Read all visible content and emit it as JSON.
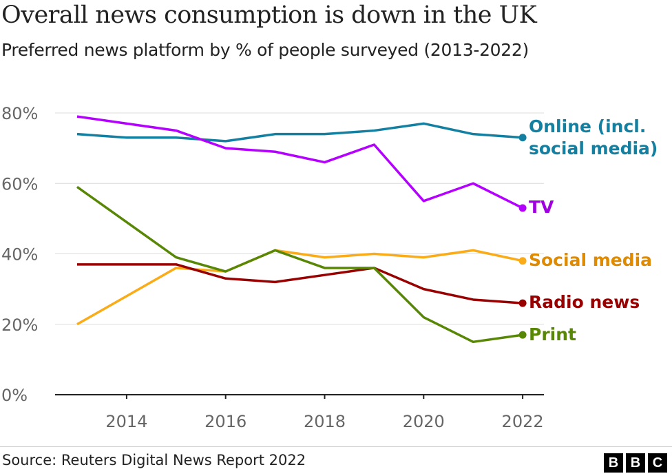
{
  "title": "Overall news consumption is down in the UK",
  "subtitle": "Preferred news platform by % of people surveyed (2013-2022)",
  "source": "Source: Reuters Digital News Report 2022",
  "logo": [
    "B",
    "B",
    "C"
  ],
  "chart_data": {
    "type": "line",
    "x": [
      2013,
      2014,
      2015,
      2016,
      2017,
      2018,
      2019,
      2020,
      2021,
      2022
    ],
    "xticks": [
      2014,
      2016,
      2018,
      2020,
      2022
    ],
    "xtick_labels": [
      "2014",
      "2016",
      "2018",
      "2020",
      "2022"
    ],
    "yticks": [
      0,
      20,
      40,
      60,
      80
    ],
    "ytick_labels": [
      "0%",
      "20%",
      "40%",
      "60%",
      "80%"
    ],
    "ylim": [
      0,
      80
    ],
    "grid": "horizontal",
    "legend": "direct labels at line ends",
    "series": [
      {
        "name": "Online (incl. social media)",
        "label_lines": [
          "Online (incl.",
          "social media)"
        ],
        "color": "#1380A1",
        "label_color": "#1380A1",
        "values": [
          74,
          73,
          73,
          72,
          74,
          74,
          75,
          77,
          74,
          73
        ]
      },
      {
        "name": "TV",
        "label_lines": [
          "TV"
        ],
        "color": "#B300FF",
        "label_color": "#A000E0",
        "values": [
          79,
          77,
          75,
          70,
          69,
          66,
          71,
          55,
          60,
          53
        ]
      },
      {
        "name": "Social media",
        "label_lines": [
          "Social media"
        ],
        "color": "#FAAB18",
        "label_color": "#E08A00",
        "values": [
          20,
          28,
          36,
          35,
          41,
          39,
          40,
          39,
          41,
          38
        ]
      },
      {
        "name": "Radio news",
        "label_lines": [
          "Radio news"
        ],
        "color": "#990000",
        "label_color": "#990000",
        "values": [
          37,
          37,
          37,
          33,
          32,
          34,
          36,
          30,
          27,
          26
        ]
      },
      {
        "name": "Print",
        "label_lines": [
          "Print"
        ],
        "color": "#588705",
        "label_color": "#588705",
        "values": [
          59,
          49,
          39,
          35,
          41,
          36,
          36,
          22,
          15,
          17
        ]
      }
    ]
  }
}
